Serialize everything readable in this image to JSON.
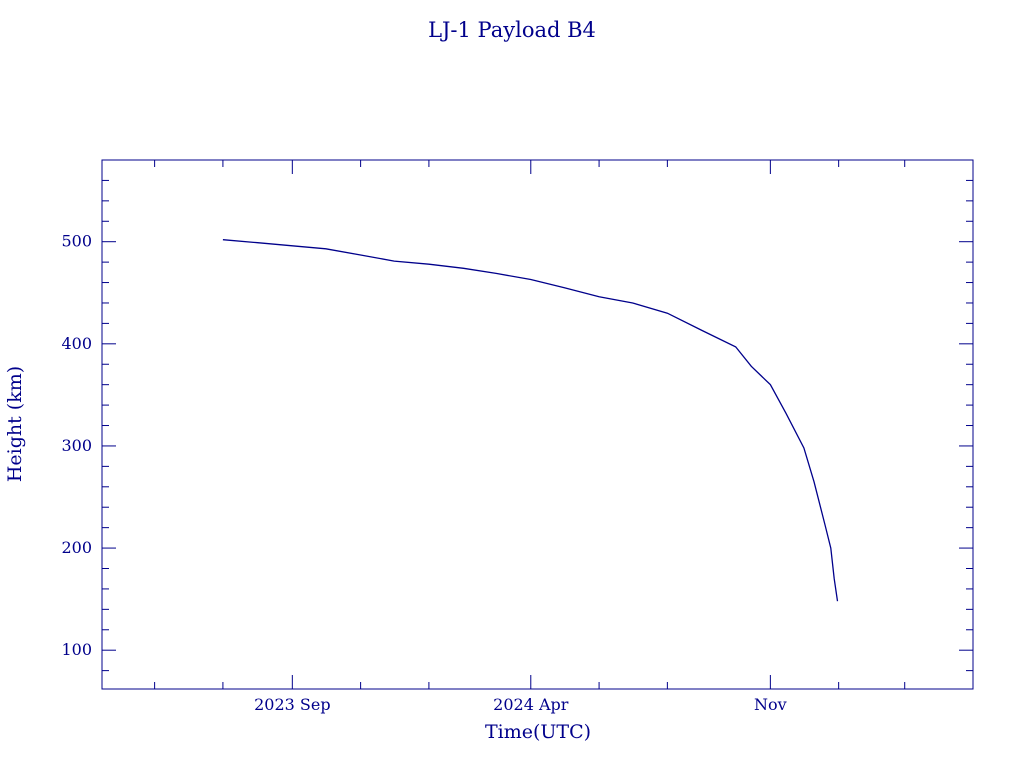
{
  "chart_data": {
    "type": "line",
    "title": "LJ-1 Payload B4",
    "xlabel": "Time(UTC)",
    "ylabel": "Height (km)",
    "xlim": [
      "2023-03-15",
      "2025-05-01"
    ],
    "ylim": [
      62,
      580
    ],
    "x_ticks": [
      {
        "date": "2023-09-01",
        "label": "2023 Sep"
      },
      {
        "date": "2024-04-01",
        "label": "2024 Apr"
      },
      {
        "date": "2024-11-01",
        "label": "Nov"
      }
    ],
    "y_ticks": [
      100,
      200,
      300,
      400,
      500
    ],
    "grid": false,
    "color": "#00008b",
    "series": [
      {
        "x": [
          "2023-07-01",
          "2023-08-01",
          "2023-09-01",
          "2023-10-01",
          "2023-11-01",
          "2023-12-01",
          "2024-01-01",
          "2024-02-01",
          "2024-03-01",
          "2024-04-01",
          "2024-05-01",
          "2024-06-01",
          "2024-07-01",
          "2024-08-01",
          "2024-09-01",
          "2024-10-01",
          "2024-10-15",
          "2024-11-01",
          "2024-11-15",
          "2024-12-01",
          "2024-12-10",
          "2024-12-20",
          "2024-12-25",
          "2024-12-28",
          "2024-12-31"
        ],
        "y": [
          502,
          499,
          496,
          493,
          487,
          481,
          478,
          474,
          469,
          463,
          455,
          446,
          440,
          430,
          413,
          397,
          378,
          360,
          332,
          298,
          265,
          222,
          200,
          170,
          148
        ]
      }
    ]
  }
}
